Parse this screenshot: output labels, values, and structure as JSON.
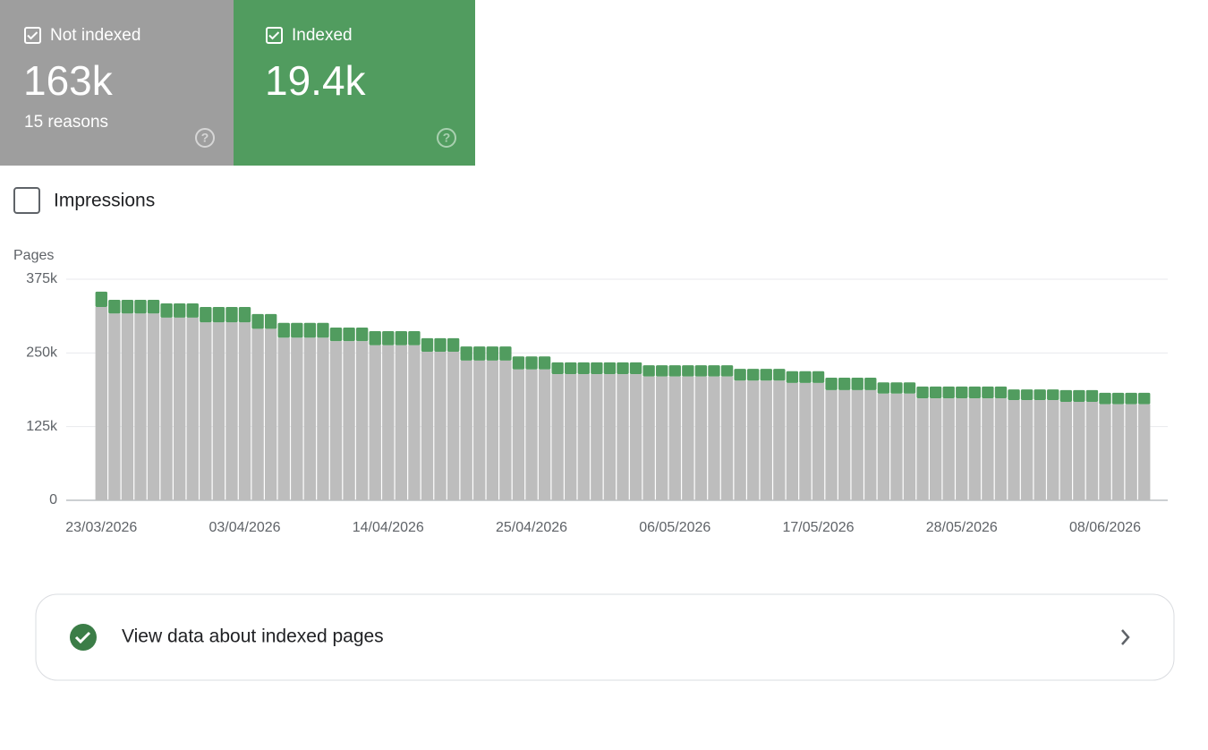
{
  "cards": [
    {
      "value": "163k",
      "subtitle": "15 reasons"
    },
    {
      "value": "19.4k"
    }
  ],
  "impressions": "Impressions",
  "chart_data": {
    "type": "bar",
    "stacked": true,
    "y_label": "Pages",
    "categories": [
      "23/03/2026",
      null,
      null,
      null,
      null,
      null,
      null,
      null,
      null,
      null,
      null,
      "03/04/2026",
      null,
      null,
      null,
      null,
      null,
      null,
      null,
      null,
      null,
      null,
      "14/04/2026",
      null,
      null,
      null,
      null,
      null,
      null,
      null,
      null,
      null,
      null,
      "25/04/2026",
      null,
      null,
      null,
      null,
      null,
      null,
      null,
      null,
      null,
      null,
      "06/05/2026",
      null,
      null,
      null,
      null,
      null,
      null,
      null,
      null,
      null,
      null,
      "17/05/2026",
      null,
      null,
      null,
      null,
      null,
      null,
      null,
      null,
      null,
      null,
      "28/05/2026",
      null,
      null,
      null,
      null,
      null,
      null,
      null,
      null,
      null,
      null,
      "08/06/2026",
      null,
      null,
      null
    ],
    "series": [
      {
        "name": "Not indexed",
        "color": "#bdbdbd",
        "values": [
          328000,
          317000,
          317000,
          317000,
          317000,
          310000,
          310000,
          310000,
          302000,
          302000,
          302000,
          302000,
          291000,
          291000,
          276000,
          276000,
          276000,
          276000,
          270000,
          270000,
          270000,
          263000,
          263000,
          263000,
          263000,
          252000,
          252000,
          252000,
          237000,
          237000,
          237000,
          237000,
          222000,
          222000,
          222000,
          214000,
          214000,
          214000,
          214000,
          214000,
          214000,
          214000,
          210000,
          210000,
          210000,
          210000,
          210000,
          210000,
          210000,
          203000,
          203000,
          203000,
          203000,
          199000,
          199000,
          199000,
          187000,
          187000,
          187000,
          187000,
          181000,
          181000,
          181000,
          173000,
          173000,
          173000,
          173000,
          173000,
          173000,
          173000,
          170000,
          170000,
          170000,
          170000,
          167000,
          167000,
          167000,
          163000,
          163000,
          163000,
          163000
        ]
      },
      {
        "name": "Indexed",
        "color": "#519c5f",
        "values": [
          26000,
          23000,
          23000,
          23000,
          23000,
          24000,
          24000,
          24000,
          26000,
          26000,
          26000,
          26000,
          25000,
          25000,
          25000,
          25000,
          25000,
          25000,
          23000,
          23000,
          23000,
          24000,
          24000,
          24000,
          24000,
          23000,
          23000,
          23000,
          24000,
          24000,
          24000,
          24000,
          22000,
          22000,
          22000,
          20000,
          20000,
          20000,
          20000,
          20000,
          20000,
          20000,
          19000,
          19000,
          19000,
          19000,
          19000,
          19000,
          19000,
          20000,
          20000,
          20000,
          20000,
          20000,
          20000,
          20000,
          21000,
          21000,
          21000,
          21000,
          19000,
          19000,
          19000,
          20000,
          20000,
          20000,
          20000,
          20000,
          20000,
          20000,
          18000,
          18000,
          18000,
          18000,
          20000,
          20000,
          20000,
          19400,
          19400,
          19400,
          19400
        ]
      }
    ],
    "ylim": [
      0,
      375000
    ],
    "yticks": [
      0,
      {
        "value": 125000,
        "label": "125k"
      },
      {
        "value": 250000,
        "label": "250k"
      },
      {
        "value": 375000,
        "label": "375k"
      }
    ],
    "grid": true
  },
  "link": "View data about indexed pages"
}
